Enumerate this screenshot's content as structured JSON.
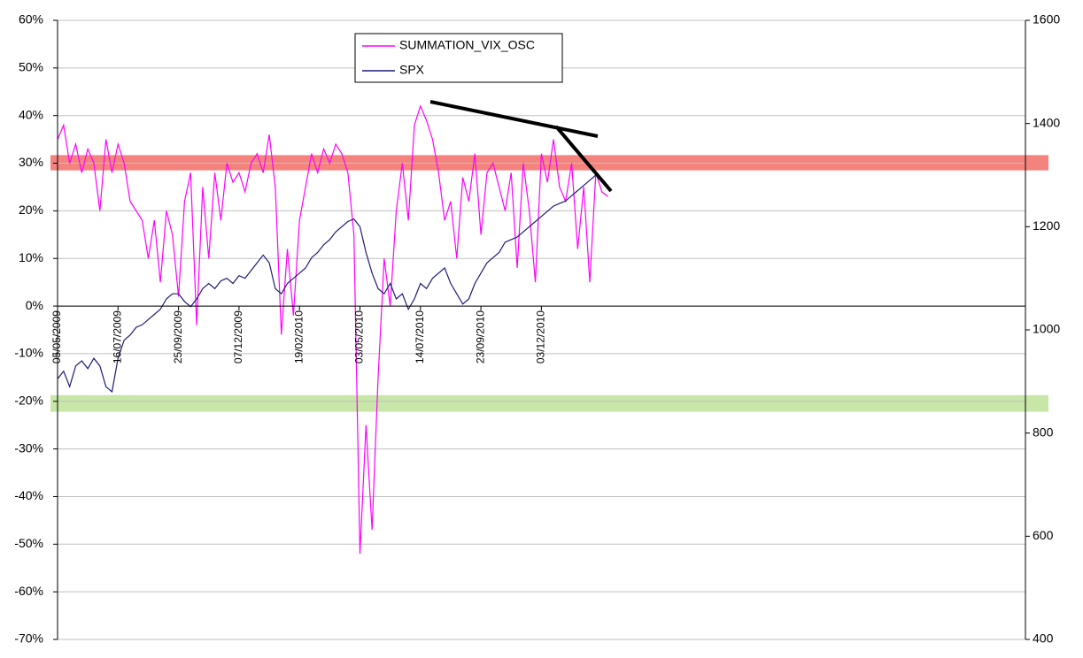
{
  "chart_data": {
    "type": "line",
    "categories": [
      "05/05/2009",
      null,
      null,
      null,
      null,
      null,
      null,
      null,
      null,
      null,
      "16/07/2009",
      null,
      null,
      null,
      null,
      null,
      null,
      null,
      null,
      null,
      "25/09/2009",
      null,
      null,
      null,
      null,
      null,
      null,
      null,
      null,
      null,
      "07/12/2009",
      null,
      null,
      null,
      null,
      null,
      null,
      null,
      null,
      null,
      "19/02/2010",
      null,
      null,
      null,
      null,
      null,
      null,
      null,
      null,
      null,
      "03/05/2010",
      null,
      null,
      null,
      null,
      null,
      null,
      null,
      null,
      null,
      "14/07/2010",
      null,
      null,
      null,
      null,
      null,
      null,
      null,
      null,
      null,
      "23/09/2010",
      null,
      null,
      null,
      null,
      null,
      null,
      null,
      null,
      null,
      "03/12/2010",
      null,
      null,
      null,
      null,
      null,
      null,
      null,
      null,
      null,
      null,
      null
    ],
    "series": [
      {
        "name": "SUMMATION_VIX_OSC",
        "color": "#ff00ff",
        "values": [
          35,
          38,
          30,
          34,
          28,
          33,
          30,
          20,
          35,
          28,
          34,
          30,
          22,
          20,
          18,
          10,
          18,
          5,
          20,
          15,
          2,
          22,
          28,
          -4,
          25,
          10,
          28,
          18,
          30,
          26,
          28,
          24,
          30,
          32,
          28,
          36,
          25,
          -6,
          12,
          -2,
          18,
          25,
          32,
          28,
          33,
          30,
          34,
          32,
          28,
          15,
          -52,
          -25,
          -47,
          -15,
          10,
          0,
          20,
          30,
          18,
          38,
          42,
          39,
          35,
          28,
          18,
          22,
          10,
          27,
          22,
          32,
          15,
          28,
          30,
          25,
          20,
          28,
          8,
          30,
          20,
          5,
          32,
          26,
          35,
          25,
          22,
          30,
          12,
          25,
          5,
          28,
          24,
          23
        ]
      },
      {
        "name": "SPX",
        "color": "#1c1c78",
        "axis": "y2",
        "values": [
          905,
          920,
          890,
          930,
          940,
          925,
          945,
          930,
          890,
          880,
          945,
          980,
          990,
          1005,
          1010,
          1020,
          1030,
          1040,
          1060,
          1070,
          1070,
          1055,
          1045,
          1060,
          1080,
          1090,
          1080,
          1095,
          1100,
          1090,
          1105,
          1100,
          1115,
          1130,
          1145,
          1130,
          1080,
          1070,
          1090,
          1100,
          1110,
          1120,
          1140,
          1150,
          1165,
          1175,
          1190,
          1200,
          1210,
          1215,
          1200,
          1150,
          1110,
          1080,
          1070,
          1090,
          1060,
          1070,
          1040,
          1060,
          1090,
          1080,
          1100,
          1110,
          1120,
          1090,
          1070,
          1050,
          1060,
          1090,
          1110,
          1130,
          1140,
          1150,
          1170,
          1175,
          1180,
          1190,
          1200,
          1210,
          1220,
          1230,
          1240,
          1245,
          1250,
          1260,
          1270,
          1280,
          1290,
          1300,
          null,
          null
        ]
      }
    ],
    "ylim": [
      -70,
      60
    ],
    "yticks": [
      {
        "value": -70,
        "label": "-70%"
      },
      {
        "value": -60,
        "label": "-60%"
      },
      {
        "value": -50,
        "label": "-50%"
      },
      {
        "value": -40,
        "label": "-40%"
      },
      {
        "value": -30,
        "label": "-30%"
      },
      {
        "value": -20,
        "label": "-20%"
      },
      {
        "value": -10,
        "label": "-10%"
      },
      {
        "value": 0,
        "label": "0%"
      },
      {
        "value": 10,
        "label": "10%"
      },
      {
        "value": 20,
        "label": "20%"
      },
      {
        "value": 30,
        "label": "30%"
      },
      {
        "value": 40,
        "label": "40%"
      },
      {
        "value": 50,
        "label": "50%"
      },
      {
        "value": 60,
        "label": "60%"
      }
    ],
    "y2lim": [
      400,
      1600
    ],
    "y2ticks": [
      400,
      600,
      800,
      1000,
      1200,
      1400,
      1600
    ],
    "grid": true,
    "bands": [
      {
        "from": 28.5,
        "to": 31.7,
        "color": "#f4837e"
      },
      {
        "from": -22.2,
        "to": -18.7,
        "color": "#c8e6a8"
      }
    ]
  }
}
